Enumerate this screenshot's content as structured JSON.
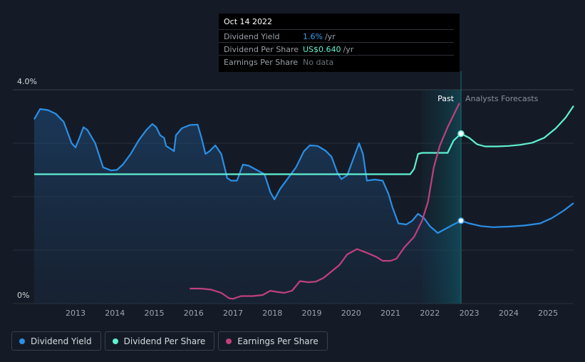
{
  "tooltip": {
    "date": "Oct 14 2022",
    "rows": [
      {
        "label": "Dividend Yield",
        "value": "1.6%",
        "unit": "/yr"
      },
      {
        "label": "Dividend Per Share",
        "value": "US$0.640",
        "unit": "/yr"
      },
      {
        "label": "Earnings Per Share",
        "value": "No data",
        "unit": ""
      }
    ]
  },
  "legend": {
    "items": [
      {
        "label": "Dividend Yield",
        "color": "#2b8fe6"
      },
      {
        "label": "Dividend Per Share",
        "color": "#5ff1d2"
      },
      {
        "label": "Earnings Per Share",
        "color": "#c0407e"
      }
    ]
  },
  "chart_data": {
    "type": "line",
    "title": "",
    "xlabel": "",
    "ylabel": "",
    "y_top_label": "4.0%",
    "y_bottom_label": "0%",
    "ylim": [
      0,
      4.0
    ],
    "xlim": [
      2011.95,
      2025.65
    ],
    "x_ticks": [
      "2013",
      "2014",
      "2015",
      "2016",
      "2017",
      "2018",
      "2019",
      "2020",
      "2021",
      "2022",
      "2023",
      "2024",
      "2025"
    ],
    "regions": {
      "past_label": "Past",
      "forecast_label": "Analysts Forecasts",
      "highlight_start": 2021.8,
      "now": 2022.79
    },
    "marker_x": 2022.79,
    "series": [
      {
        "name": "Dividend Yield",
        "color": "#2b8fe6",
        "unit": "%",
        "points": [
          [
            2011.95,
            3.45
          ],
          [
            2012.1,
            3.64
          ],
          [
            2012.3,
            3.62
          ],
          [
            2012.5,
            3.55
          ],
          [
            2012.7,
            3.4
          ],
          [
            2012.9,
            3.0
          ],
          [
            2013.0,
            2.92
          ],
          [
            2013.1,
            3.1
          ],
          [
            2013.2,
            3.3
          ],
          [
            2013.3,
            3.25
          ],
          [
            2013.5,
            3.0
          ],
          [
            2013.7,
            2.55
          ],
          [
            2013.9,
            2.49
          ],
          [
            2014.05,
            2.5
          ],
          [
            2014.2,
            2.6
          ],
          [
            2014.4,
            2.8
          ],
          [
            2014.6,
            3.05
          ],
          [
            2014.8,
            3.25
          ],
          [
            2014.95,
            3.36
          ],
          [
            2015.05,
            3.3
          ],
          [
            2015.15,
            3.15
          ],
          [
            2015.25,
            3.1
          ],
          [
            2015.3,
            2.95
          ],
          [
            2015.45,
            2.88
          ],
          [
            2015.5,
            2.85
          ],
          [
            2015.55,
            3.15
          ],
          [
            2015.7,
            3.28
          ],
          [
            2015.9,
            3.34
          ],
          [
            2016.1,
            3.35
          ],
          [
            2016.2,
            3.1
          ],
          [
            2016.3,
            2.8
          ],
          [
            2016.4,
            2.85
          ],
          [
            2016.55,
            2.96
          ],
          [
            2016.7,
            2.8
          ],
          [
            2016.85,
            2.35
          ],
          [
            2016.95,
            2.3
          ],
          [
            2017.1,
            2.3
          ],
          [
            2017.25,
            2.6
          ],
          [
            2017.4,
            2.58
          ],
          [
            2017.6,
            2.5
          ],
          [
            2017.8,
            2.42
          ],
          [
            2017.95,
            2.08
          ],
          [
            2018.05,
            1.95
          ],
          [
            2018.2,
            2.15
          ],
          [
            2018.4,
            2.35
          ],
          [
            2018.6,
            2.55
          ],
          [
            2018.8,
            2.85
          ],
          [
            2018.95,
            2.96
          ],
          [
            2019.15,
            2.95
          ],
          [
            2019.35,
            2.86
          ],
          [
            2019.5,
            2.75
          ],
          [
            2019.65,
            2.45
          ],
          [
            2019.75,
            2.33
          ],
          [
            2019.9,
            2.4
          ],
          [
            2020.05,
            2.7
          ],
          [
            2020.2,
            3.0
          ],
          [
            2020.3,
            2.8
          ],
          [
            2020.4,
            2.3
          ],
          [
            2020.6,
            2.32
          ],
          [
            2020.8,
            2.3
          ],
          [
            2020.95,
            2.05
          ],
          [
            2021.05,
            1.8
          ],
          [
            2021.2,
            1.5
          ],
          [
            2021.4,
            1.48
          ],
          [
            2021.55,
            1.55
          ],
          [
            2021.7,
            1.68
          ],
          [
            2021.85,
            1.6
          ],
          [
            2022.0,
            1.45
          ],
          [
            2022.2,
            1.32
          ],
          [
            2022.4,
            1.4
          ],
          [
            2022.6,
            1.48
          ],
          [
            2022.79,
            1.55
          ],
          [
            2023.0,
            1.5
          ],
          [
            2023.3,
            1.45
          ],
          [
            2023.6,
            1.43
          ],
          [
            2024.0,
            1.44
          ],
          [
            2024.4,
            1.46
          ],
          [
            2024.8,
            1.5
          ],
          [
            2025.1,
            1.6
          ],
          [
            2025.4,
            1.74
          ],
          [
            2025.65,
            1.88
          ]
        ]
      },
      {
        "name": "Dividend Per Share",
        "color": "#5ff1d2",
        "unit": "US$",
        "points": [
          [
            2011.95,
            2.42
          ],
          [
            2021.5,
            2.42
          ],
          [
            2021.6,
            2.52
          ],
          [
            2021.7,
            2.8
          ],
          [
            2021.8,
            2.82
          ],
          [
            2022.45,
            2.82
          ],
          [
            2022.6,
            3.05
          ],
          [
            2022.79,
            3.18
          ],
          [
            2023.0,
            3.1
          ],
          [
            2023.2,
            2.98
          ],
          [
            2023.4,
            2.94
          ],
          [
            2023.7,
            2.94
          ],
          [
            2024.0,
            2.95
          ],
          [
            2024.3,
            2.97
          ],
          [
            2024.6,
            3.01
          ],
          [
            2024.9,
            3.1
          ],
          [
            2025.2,
            3.28
          ],
          [
            2025.45,
            3.48
          ],
          [
            2025.65,
            3.7
          ]
        ]
      },
      {
        "name": "Earnings Per Share",
        "color": "#c0407e",
        "unit": "US$",
        "points": [
          [
            2015.9,
            0.28
          ],
          [
            2016.2,
            0.28
          ],
          [
            2016.45,
            0.26
          ],
          [
            2016.7,
            0.2
          ],
          [
            2016.9,
            0.1
          ],
          [
            2017.0,
            0.09
          ],
          [
            2017.2,
            0.14
          ],
          [
            2017.5,
            0.14
          ],
          [
            2017.75,
            0.16
          ],
          [
            2017.95,
            0.24
          ],
          [
            2018.1,
            0.22
          ],
          [
            2018.3,
            0.2
          ],
          [
            2018.5,
            0.24
          ],
          [
            2018.7,
            0.42
          ],
          [
            2018.9,
            0.4
          ],
          [
            2019.1,
            0.41
          ],
          [
            2019.3,
            0.48
          ],
          [
            2019.5,
            0.6
          ],
          [
            2019.7,
            0.72
          ],
          [
            2019.9,
            0.92
          ],
          [
            2020.15,
            1.02
          ],
          [
            2020.4,
            0.95
          ],
          [
            2020.65,
            0.87
          ],
          [
            2020.8,
            0.8
          ],
          [
            2021.0,
            0.8
          ],
          [
            2021.15,
            0.84
          ],
          [
            2021.35,
            1.05
          ],
          [
            2021.6,
            1.25
          ],
          [
            2021.8,
            1.55
          ],
          [
            2021.95,
            1.9
          ],
          [
            2022.1,
            2.55
          ],
          [
            2022.25,
            2.95
          ],
          [
            2022.45,
            3.3
          ],
          [
            2022.65,
            3.6
          ],
          [
            2022.75,
            3.75
          ]
        ]
      }
    ]
  }
}
